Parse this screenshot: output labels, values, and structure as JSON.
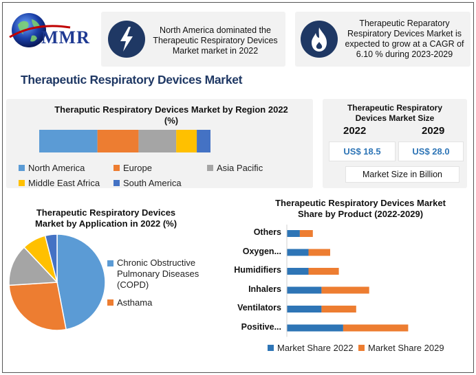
{
  "logo": {
    "text": "MMR",
    "icon": "globe-icon"
  },
  "highlights": [
    {
      "icon": "lightning-icon",
      "text": "North America dominated the Therapeutic Respiratory Devices Market market in 2022"
    },
    {
      "icon": "flame-icon",
      "text": "Therapeutic Reparatory Respiratory Devices Market is expected to grow at a CAGR of 6.10 % during 2023-2029"
    }
  ],
  "main_title": "Therapeutic Respiratory Devices Market",
  "region_chart": {
    "title": "Theraputic Respiratory Devices Market by Region 2022 (%)",
    "legend": [
      {
        "name": "North America",
        "color": "#5b9bd5"
      },
      {
        "name": "Europe",
        "color": "#ed7d31"
      },
      {
        "name": "Asia Pacific",
        "color": "#a5a5a5"
      },
      {
        "name": "Middle East Africa",
        "color": "#ffc000"
      },
      {
        "name": "South America",
        "color": "#4472c4"
      }
    ]
  },
  "market_size": {
    "title": "Therapeutic Respiratory Devices Market Size",
    "years": [
      "2022",
      "2029"
    ],
    "values": [
      "US$ 18.5",
      "US$ 28.0"
    ],
    "unit_label": "Market Size in Billion"
  },
  "application_chart": {
    "title": "Therapeutic Respiratory Devices Market by Application in 2022 (%)",
    "legend": [
      {
        "name": "Chronic Obstructive Pulmonary Diseases (COPD)",
        "color": "#5b9bd5"
      },
      {
        "name": "Asthama",
        "color": "#ed7d31"
      }
    ]
  },
  "product_chart": {
    "title": "Therapeutic Respiratory Devices Market Share by Product (2022-2029)",
    "legend": [
      {
        "name": "Market Share 2022",
        "color": "#2e75b6"
      },
      {
        "name": "Market Share 2029",
        "color": "#ed7d31"
      }
    ]
  },
  "chart_data": [
    {
      "type": "bar",
      "orientation": "horizontal-stacked",
      "title": "Theraputic Respiratory Devices Market by Region 2022 (%)",
      "series": [
        {
          "name": "North America",
          "values": [
            34
          ]
        },
        {
          "name": "Europe",
          "values": [
            24
          ]
        },
        {
          "name": "Asia Pacific",
          "values": [
            22
          ]
        },
        {
          "name": "Middle East Africa",
          "values": [
            12
          ]
        },
        {
          "name": "South America",
          "values": [
            8
          ]
        }
      ],
      "legend": "bottom"
    },
    {
      "type": "pie",
      "title": "Therapeutic Respiratory Devices Market by Application in 2022 (%)",
      "slices": [
        {
          "name": "Chronic Obstructive Pulmonary Diseases (COPD)",
          "value": 47,
          "color": "#5b9bd5"
        },
        {
          "name": "Asthama",
          "value": 27,
          "color": "#ed7d31"
        },
        {
          "name": "",
          "value": 14,
          "color": "#a5a5a5"
        },
        {
          "name": "",
          "value": 8,
          "color": "#ffc000"
        },
        {
          "name": "",
          "value": 4,
          "color": "#4472c4"
        }
      ],
      "legend": "right"
    },
    {
      "type": "bar",
      "orientation": "horizontal-stacked",
      "title": "Therapeutic Respiratory Devices Market Share by Product (2022-2029)",
      "categories": [
        "Others",
        "Oxygen...",
        "Humidifiers",
        "Inhalers",
        "Ventilators",
        "Positive..."
      ],
      "series": [
        {
          "name": "Market Share 2022",
          "values": [
            3,
            5,
            5,
            8,
            8,
            13
          ]
        },
        {
          "name": "Market Share 2029",
          "values": [
            3,
            5,
            7,
            11,
            8,
            15
          ]
        }
      ],
      "xlim": [
        0,
        30
      ],
      "legend": "bottom"
    }
  ]
}
